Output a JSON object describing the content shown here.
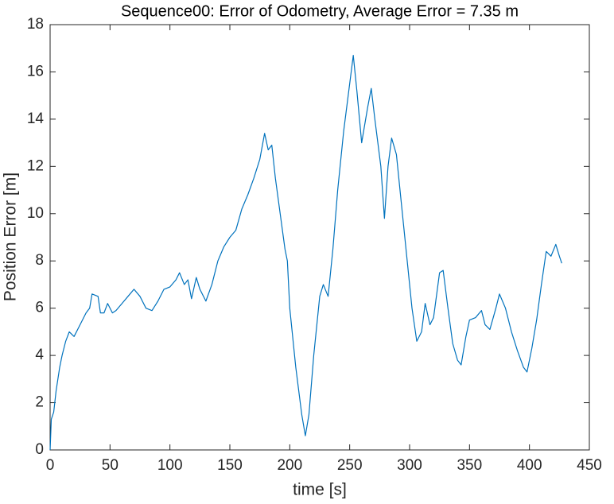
{
  "chart_data": {
    "type": "line",
    "title": "Sequence00: Error of Odometry, Average Error = 7.35 m",
    "xlabel": "time [s]",
    "ylabel": "Position Error [m]",
    "x": [
      0,
      1,
      3,
      5,
      8,
      10,
      13,
      16,
      20,
      25,
      30,
      33,
      35,
      40,
      42,
      45,
      48,
      52,
      55,
      60,
      65,
      70,
      75,
      80,
      85,
      90,
      95,
      100,
      105,
      108,
      112,
      115,
      118,
      122,
      125,
      130,
      135,
      140,
      145,
      150,
      155,
      160,
      165,
      170,
      175,
      179,
      182,
      185,
      188,
      192,
      196,
      198,
      200,
      205,
      210,
      213,
      216,
      220,
      225,
      228,
      232,
      236,
      240,
      245,
      250,
      253,
      256,
      260,
      265,
      268,
      271,
      276,
      279,
      282,
      285,
      289,
      293,
      298,
      302,
      306,
      310,
      313,
      317,
      320,
      325,
      328,
      332,
      336,
      340,
      343,
      347,
      350,
      355,
      360,
      363,
      367,
      372,
      375,
      380,
      385,
      390,
      395,
      398,
      402,
      406,
      410,
      414,
      418,
      422,
      425,
      427
    ],
    "series": [
      {
        "name": "error",
        "color": "#0072bd",
        "values": [
          0,
          1.3,
          1.6,
          2.5,
          3.5,
          4.0,
          4.6,
          5.0,
          4.8,
          5.3,
          5.8,
          6.0,
          6.6,
          6.5,
          5.8,
          5.8,
          6.2,
          5.8,
          5.9,
          6.2,
          6.5,
          6.8,
          6.5,
          6.0,
          5.9,
          6.3,
          6.8,
          6.9,
          7.2,
          7.5,
          7.0,
          7.2,
          6.4,
          7.3,
          6.8,
          6.3,
          7.0,
          8.0,
          8.6,
          9.0,
          9.3,
          10.2,
          10.8,
          11.5,
          12.3,
          13.4,
          12.7,
          12.9,
          11.5,
          10.0,
          8.5,
          8.0,
          6.0,
          3.5,
          1.5,
          0.6,
          1.5,
          4.0,
          6.5,
          7.0,
          6.5,
          8.5,
          11.0,
          13.5,
          15.5,
          16.7,
          15.2,
          13.0,
          14.5,
          15.3,
          14.0,
          12.0,
          9.8,
          12.0,
          13.2,
          12.5,
          10.5,
          8.0,
          6.0,
          4.6,
          5.0,
          6.2,
          5.3,
          5.6,
          7.5,
          7.6,
          6.0,
          4.5,
          3.8,
          3.6,
          4.8,
          5.5,
          5.6,
          5.9,
          5.3,
          5.1,
          6.0,
          6.6,
          6.0,
          5.0,
          4.2,
          3.5,
          3.3,
          4.3,
          5.5,
          7.0,
          8.4,
          8.2,
          8.7,
          8.2,
          7.9
        ]
      }
    ],
    "xlim": [
      0,
      450
    ],
    "xticks": [
      0,
      50,
      100,
      150,
      200,
      250,
      300,
      350,
      400,
      450
    ],
    "ylim": [
      0,
      18
    ],
    "yticks": [
      0,
      2,
      4,
      6,
      8,
      10,
      12,
      14,
      16,
      18
    ],
    "grid": false
  }
}
